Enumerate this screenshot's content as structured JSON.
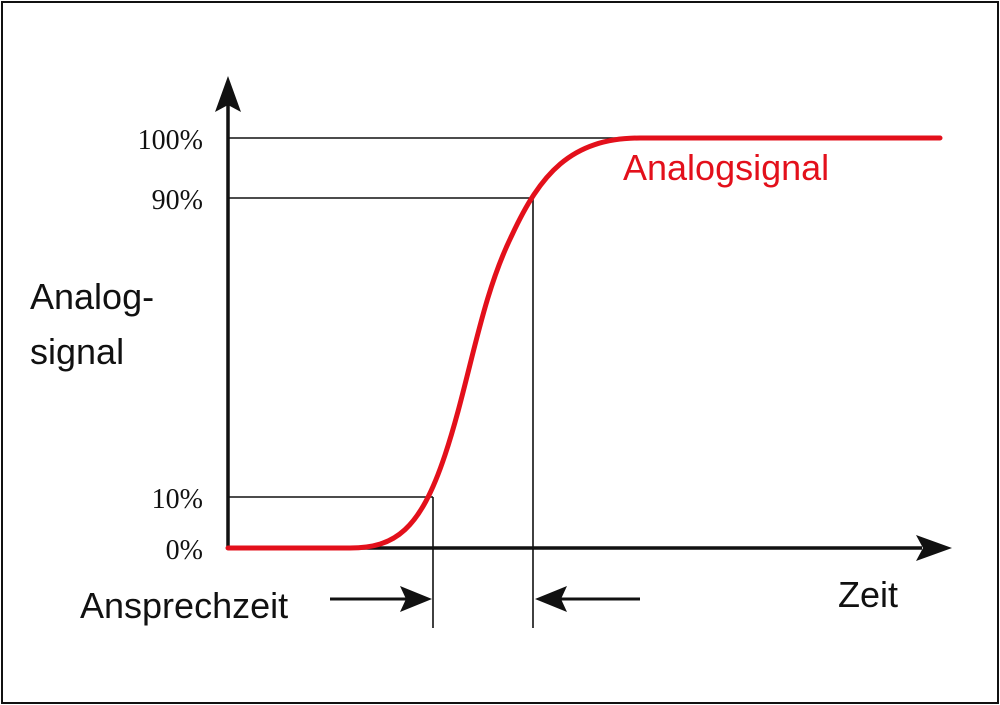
{
  "diagram": {
    "y_axis_label_line1": "Analog-",
    "y_axis_label_line2": "signal",
    "x_axis_label": "Zeit",
    "curve_label": "Analogsignal",
    "response_time_label": "Ansprechzeit",
    "levels": [
      {
        "label": "100%",
        "value": 100
      },
      {
        "label": "90%",
        "value": 90
      },
      {
        "label": "10%",
        "value": 10
      },
      {
        "label": "0%",
        "value": 0
      }
    ],
    "colors": {
      "curve": "#e3101b",
      "lines": "#111111",
      "background": "#ffffff"
    }
  }
}
